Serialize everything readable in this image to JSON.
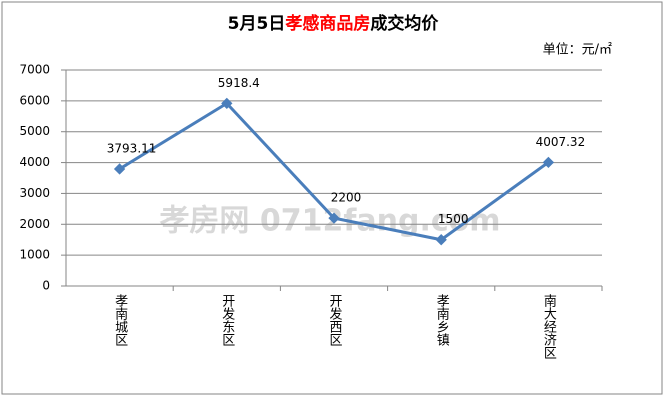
{
  "chart_data": {
    "type": "line",
    "title": [
      "5月5日",
      "孝感商品房",
      "成交均价"
    ],
    "title_colors": [
      "#000000",
      "#ff0000",
      "#000000"
    ],
    "subtitle": "单位：元/㎡",
    "watermark": "孝房网 0712fang.com",
    "categories": [
      "孝南城区",
      "开发东区",
      "开发西区",
      "孝南乡镇",
      "南大经济区"
    ],
    "series": [
      {
        "name": "成交均价",
        "color": "#4a7ebb",
        "values": [
          3793.11,
          5918.4,
          2200,
          1500,
          4007.32
        ]
      }
    ],
    "ylim": [
      0,
      7000
    ],
    "yticks": [
      0,
      1000,
      2000,
      3000,
      4000,
      5000,
      6000,
      7000
    ],
    "grid": true,
    "legend": false
  }
}
